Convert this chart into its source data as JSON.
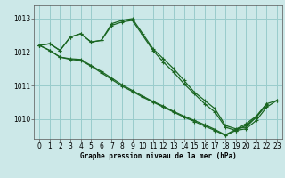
{
  "title": "Graphe pression niveau de la mer (hPa)",
  "background_color": "#cce8e8",
  "grid_color": "#99cccc",
  "line_color": "#1a6622",
  "x_ticks": [
    0,
    1,
    2,
    3,
    4,
    5,
    6,
    7,
    8,
    9,
    10,
    11,
    12,
    13,
    14,
    15,
    16,
    17,
    18,
    19,
    20,
    21,
    22,
    23
  ],
  "ylim": [
    1009.4,
    1013.4
  ],
  "y_ticks": [
    1010,
    1011,
    1012,
    1013
  ],
  "lines": [
    [
      1012.2,
      1012.25,
      1012.05,
      1012.45,
      1012.55,
      1012.3,
      1012.35,
      1012.85,
      1012.95,
      1013.0,
      1012.55,
      1012.1,
      1011.8,
      1011.5,
      1011.15,
      1010.8,
      1010.55,
      1010.3,
      1009.8,
      1009.7,
      1009.75,
      1010.05,
      1010.45,
      1010.55
    ],
    [
      1012.2,
      1012.25,
      1012.05,
      1012.45,
      1012.55,
      1012.3,
      1012.35,
      1012.8,
      1012.9,
      1012.95,
      1012.5,
      1012.05,
      1011.7,
      1011.4,
      1011.05,
      1010.75,
      1010.45,
      1010.2,
      1009.75,
      1009.65,
      1009.7,
      1009.95,
      1010.35,
      1010.55
    ],
    [
      1012.2,
      1012.05,
      1011.85,
      1011.8,
      1011.78,
      1011.6,
      1011.42,
      1011.22,
      1011.02,
      1010.85,
      1010.68,
      1010.52,
      1010.38,
      1010.22,
      1010.08,
      1009.95,
      1009.82,
      1009.68,
      1009.52,
      1009.68,
      1009.85,
      1010.08,
      1010.45,
      null
    ],
    [
      1012.2,
      1012.05,
      1011.85,
      1011.78,
      1011.75,
      1011.58,
      1011.38,
      1011.18,
      1010.98,
      1010.82,
      1010.65,
      1010.5,
      1010.35,
      1010.2,
      1010.05,
      1009.92,
      1009.78,
      1009.65,
      1009.5,
      1009.65,
      1009.8,
      1010.05,
      1010.42,
      null
    ]
  ]
}
